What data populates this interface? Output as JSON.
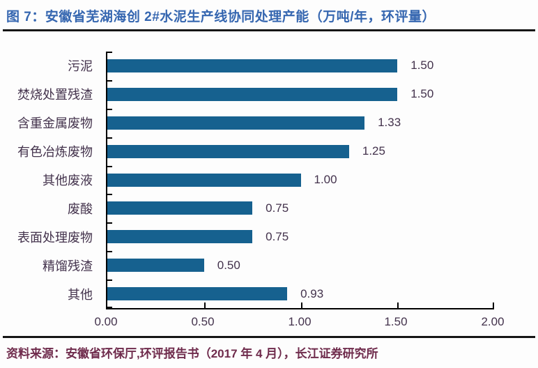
{
  "title": "图 7：安徽省芜湖海创 2#水泥生产线协同处理产能（万吨/年，环评量）",
  "source": "资料来源：安徽省环保厅,环评报告书（2017 年 4 月），长江证券研究所",
  "colors": {
    "title": "#3566b0",
    "bar": "#16618f",
    "text": "#43324c",
    "source": "#6f2b4c",
    "axis": "#000000",
    "rule": "#161616"
  },
  "chart_data": {
    "type": "bar",
    "orientation": "horizontal",
    "title": "安徽省芜湖海创2#水泥生产线协同处理产能（万吨/年，环评量）",
    "categories": [
      "污泥",
      "焚烧处置残渣",
      "含重金属废物",
      "有色冶炼废物",
      "其他废液",
      "废酸",
      "表面处理废物",
      "精馏残渣",
      "其他"
    ],
    "values": [
      1.5,
      1.5,
      1.33,
      1.25,
      1.0,
      0.75,
      0.75,
      0.5,
      0.93
    ],
    "value_labels": [
      "1.50",
      "1.50",
      "1.33",
      "1.25",
      "1.00",
      "0.75",
      "0.75",
      "0.50",
      "0.93"
    ],
    "xlim": [
      0.0,
      2.0
    ],
    "x_ticks": [
      0.0,
      0.5,
      1.0,
      1.5,
      2.0
    ],
    "x_tick_labels": [
      "0.00",
      "0.50",
      "1.00",
      "1.50",
      "2.00"
    ],
    "xlabel": "",
    "ylabel": "",
    "grid": false,
    "legend": false,
    "data_labels": "outside-end"
  }
}
